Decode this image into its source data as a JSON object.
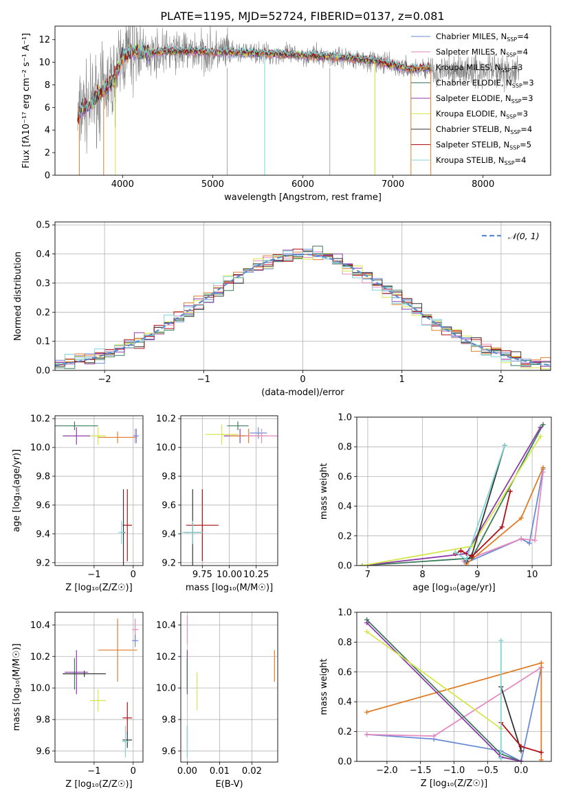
{
  "title": "PLATE=1195, MJD=52724, FIBERID=0137, z=0.081",
  "colors": {
    "chabrier_miles": "#6a8bd6",
    "salpeter_miles": "#e589bf",
    "kroupa_miles": "#e07b26",
    "chabrier_elodie": "#3a7a5a",
    "salpeter_elodie": "#8e3aa8",
    "kroupa_elodie": "#d4e64a",
    "chabrier_stelib": "#333333",
    "salpeter_stelib": "#b00f14",
    "kroupa_stelib": "#7fd4d4",
    "data": "#808080",
    "normal": "#5a8ad0"
  },
  "chart_data": [
    {
      "id": "spectrum",
      "type": "line",
      "xlabel": "wavelength [Angstrom, rest frame]",
      "ylabel": "Flux [fλ10⁻¹⁷ erg cm⁻² s⁻¹ A⁻¹]",
      "xlim": [
        3250,
        8750
      ],
      "ylim": [
        0,
        13.2
      ],
      "xticks": [
        4000,
        5000,
        6000,
        7000,
        8000
      ],
      "yticks": [
        0,
        2,
        4,
        6,
        8,
        10,
        12
      ],
      "grid": false,
      "legend_position": "top-right",
      "continuum": {
        "x": [
          3500,
          3550,
          3650,
          3700,
          3800,
          3900,
          4000,
          4100,
          4300,
          4500,
          5000,
          5500,
          6000,
          6500,
          6800,
          7000,
          7200,
          7420
        ],
        "y": [
          5.0,
          6.0,
          6.3,
          7.0,
          7.6,
          8.4,
          10.5,
          11.0,
          10.8,
          11.0,
          10.9,
          10.8,
          10.6,
          10.4,
          10.1,
          9.7,
          9.4,
          9.5
        ]
      },
      "series": [
        {
          "name": "Chabrier MILES, N_SSP=4",
          "color_key": "chabrier_miles"
        },
        {
          "name": "Salpeter MILES, N_SSP=4",
          "color_key": "salpeter_miles"
        },
        {
          "name": "Kroupa MILES, N_SSP=3",
          "color_key": "kroupa_miles"
        },
        {
          "name": "Chabrier ELODIE, N_SSP=3",
          "color_key": "chabrier_elodie"
        },
        {
          "name": "Salpeter ELODIE, N_SSP=3",
          "color_key": "salpeter_elodie"
        },
        {
          "name": "Kroupa ELODIE, N_SSP=3",
          "color_key": "kroupa_elodie"
        },
        {
          "name": "Chabrier STELIB, N_SSP=4",
          "color_key": "chabrier_stelib"
        },
        {
          "name": "Salpeter STELIB, N_SSP=5",
          "color_key": "salpeter_stelib"
        },
        {
          "name": "Kroupa STELIB, N_SSP=4",
          "color_key": "kroupa_stelib"
        }
      ]
    },
    {
      "id": "residuals",
      "type": "histogram",
      "xlabel": "(data-model)/error",
      "ylabel": "Normed distribution",
      "xlim": [
        -2.5,
        2.5
      ],
      "ylim": [
        0,
        0.51
      ],
      "xticks": [
        -2,
        -1,
        0,
        1,
        2
      ],
      "yticks": [
        0.0,
        0.1,
        0.2,
        0.3,
        0.4,
        0.5
      ],
      "grid": true,
      "legend_position": "top-right",
      "reference_curve": {
        "name": "𝒩(0, 1)",
        "mean": 0,
        "sigma": 1
      }
    },
    {
      "id": "age_vs_Z",
      "type": "errorbar",
      "xlabel": "Z [log₁₀(Z/Z☉)]",
      "ylabel": "age  [log₁₀(age/yr)]",
      "xlim": [
        -2.0,
        0.25
      ],
      "ylim": [
        9.18,
        10.22
      ],
      "xticks": [
        -1,
        0
      ],
      "yticks": [
        9.2,
        9.4,
        9.6,
        9.8,
        10.0,
        10.2
      ],
      "grid": true,
      "points": [
        {
          "color_key": "chabrier_elodie",
          "x": -1.5,
          "xerr": 0.6,
          "y": 10.15,
          "yerr": 0.03
        },
        {
          "color_key": "salpeter_elodie",
          "x": -1.45,
          "xerr": 0.35,
          "y": 10.08,
          "yerr": 0.06
        },
        {
          "color_key": "kroupa_elodie",
          "x": -0.9,
          "xerr": 0.2,
          "y": 10.08,
          "yerr": 0.06
        },
        {
          "color_key": "kroupa_miles",
          "x": -0.4,
          "xerr": 0.5,
          "y": 10.07,
          "yerr": 0.04
        },
        {
          "color_key": "salpeter_miles",
          "x": 0.05,
          "xerr": 0.06,
          "y": 10.08,
          "yerr": 0.05
        },
        {
          "color_key": "chabrier_miles",
          "x": 0.08,
          "xerr": 0.06,
          "y": 10.08,
          "yerr": 0.05
        },
        {
          "color_key": "salpeter_stelib",
          "x": -0.15,
          "xerr": 0.12,
          "y": 9.46,
          "yerr": 0.25
        },
        {
          "color_key": "chabrier_stelib",
          "x": -0.25,
          "xerr": 0.05,
          "y": 9.41,
          "yerr": 0.3
        },
        {
          "color_key": "kroupa_stelib",
          "x": -0.3,
          "xerr": 0.08,
          "y": 9.41,
          "yerr": 0.08
        }
      ]
    },
    {
      "id": "age_vs_mass",
      "type": "errorbar",
      "xlabel": "mass [log₁₀(M/M☉)]",
      "xlim": [
        9.55,
        10.45
      ],
      "ylim": [
        9.18,
        10.22
      ],
      "xticks": [
        9.75,
        10.0,
        10.25
      ],
      "xticklabels": [
        "9.75",
        "10.00",
        "10.25"
      ],
      "yticks": [
        9.2,
        9.4,
        9.6,
        9.8,
        10.0,
        10.2
      ],
      "grid": true,
      "points": [
        {
          "color_key": "kroupa_elodie",
          "x": 9.93,
          "xerr": 0.15,
          "y": 10.09,
          "yerr": 0.07
        },
        {
          "color_key": "chabrier_elodie",
          "x": 10.08,
          "xerr": 0.1,
          "y": 10.15,
          "yerr": 0.03
        },
        {
          "color_key": "salpeter_elodie",
          "x": 10.1,
          "xerr": 0.15,
          "y": 10.08,
          "yerr": 0.05
        },
        {
          "color_key": "kroupa_miles",
          "x": 10.18,
          "xerr": 0.18,
          "y": 10.08,
          "yerr": 0.05
        },
        {
          "color_key": "chabrier_miles",
          "x": 10.27,
          "xerr": 0.08,
          "y": 10.1,
          "yerr": 0.04
        },
        {
          "color_key": "salpeter_miles",
          "x": 10.3,
          "xerr": 0.15,
          "y": 10.08,
          "yerr": 0.05
        },
        {
          "color_key": "salpeter_stelib",
          "x": 9.75,
          "xerr": 0.15,
          "y": 9.46,
          "yerr": 0.25
        },
        {
          "color_key": "chabrier_stelib",
          "x": 9.66,
          "xerr": 0.08,
          "y": 9.41,
          "yerr": 0.3
        },
        {
          "color_key": "kroupa_stelib",
          "x": 9.66,
          "xerr": 0.1,
          "y": 9.41,
          "yerr": 0.08
        }
      ]
    },
    {
      "id": "weight_vs_age",
      "type": "line",
      "xlabel": "age  [log₁₀(age/yr)]",
      "ylabel": "mass weight",
      "xlim": [
        6.8,
        10.35
      ],
      "ylim": [
        0,
        1.0
      ],
      "xticks": [
        7,
        8,
        9,
        10
      ],
      "yticks": [
        0.0,
        0.2,
        0.4,
        0.6,
        0.8,
        1.0
      ],
      "grid": true,
      "series": [
        {
          "color_key": "chabrier_miles",
          "x": [
            8.8,
            9.8,
            9.95,
            10.2
          ],
          "y": [
            0.02,
            0.18,
            0.15,
            0.65
          ]
        },
        {
          "color_key": "salpeter_miles",
          "x": [
            8.75,
            9.8,
            10.05,
            10.2
          ],
          "y": [
            0.03,
            0.18,
            0.17,
            0.63
          ]
        },
        {
          "color_key": "kroupa_miles",
          "x": [
            8.8,
            9.8,
            10.2
          ],
          "y": [
            0.01,
            0.32,
            0.66
          ]
        },
        {
          "color_key": "chabrier_elodie",
          "x": [
            6.9,
            8.9,
            10.2
          ],
          "y": [
            0.0,
            0.05,
            0.95
          ]
        },
        {
          "color_key": "salpeter_elodie",
          "x": [
            6.9,
            8.8,
            10.15
          ],
          "y": [
            0.0,
            0.08,
            0.93
          ]
        },
        {
          "color_key": "kroupa_elodie",
          "x": [
            6.9,
            8.9,
            10.15
          ],
          "y": [
            0.0,
            0.13,
            0.87
          ]
        },
        {
          "color_key": "chabrier_stelib",
          "x": [
            8.8,
            8.9,
            9.5
          ],
          "y": [
            0.03,
            0.07,
            0.81
          ]
        },
        {
          "color_key": "salpeter_stelib",
          "x": [
            8.6,
            8.7,
            8.9,
            9.45,
            9.6
          ],
          "y": [
            0.08,
            0.1,
            0.06,
            0.26,
            0.5
          ]
        },
        {
          "color_key": "kroupa_stelib",
          "x": [
            8.6,
            8.8,
            9.5
          ],
          "y": [
            0.09,
            0.04,
            0.81
          ]
        }
      ]
    },
    {
      "id": "mass_vs_Z",
      "type": "errorbar",
      "xlabel": "Z [log₁₀(Z/Z☉)]",
      "ylabel": "mass [log₁₀(M/M☉)]",
      "xlim": [
        -2.0,
        0.25
      ],
      "ylim": [
        9.53,
        10.48
      ],
      "xticks": [
        -1,
        0
      ],
      "yticks": [
        9.6,
        9.8,
        10.0,
        10.2,
        10.4
      ],
      "grid": true,
      "points": [
        {
          "color_key": "chabrier_elodie",
          "x": -1.5,
          "xerr": 0.3,
          "y": 10.09,
          "yerr": 0.1
        },
        {
          "color_key": "chabrier_stelib",
          "x": -1.25,
          "xerr": 0.55,
          "y": 10.09,
          "yerr": 0.02
        },
        {
          "color_key": "salpeter_elodie",
          "x": -1.45,
          "xerr": 0.3,
          "y": 10.1,
          "yerr": 0.14
        },
        {
          "color_key": "kroupa_elodie",
          "x": -0.9,
          "xerr": 0.2,
          "y": 9.92,
          "yerr": 0.07
        },
        {
          "color_key": "kroupa_miles",
          "x": -0.4,
          "xerr": 0.5,
          "y": 10.24,
          "yerr": 0.2
        },
        {
          "color_key": "salpeter_miles",
          "x": 0.05,
          "xerr": 0.08,
          "y": 10.37,
          "yerr": 0.07
        },
        {
          "color_key": "chabrier_miles",
          "x": 0.05,
          "xerr": 0.08,
          "y": 10.3,
          "yerr": 0.04
        },
        {
          "color_key": "salpeter_stelib",
          "x": -0.15,
          "xerr": 0.12,
          "y": 9.81,
          "yerr": 0.1
        },
        {
          "color_key": "chabrier_stelib",
          "x": -0.15,
          "xerr": 0.12,
          "y": 9.67,
          "yerr": 0.05
        },
        {
          "color_key": "kroupa_stelib",
          "x": -0.2,
          "xerr": 0.08,
          "y": 9.66,
          "yerr": 0.1
        }
      ]
    },
    {
      "id": "mass_vs_ebv",
      "type": "errorbar",
      "xlabel": "E(B-V)",
      "xlim": [
        -0.002,
        0.028
      ],
      "ylim": [
        9.53,
        10.48
      ],
      "xticks": [
        0.0,
        0.01,
        0.02
      ],
      "xticklabels": [
        "0.00",
        "0.01",
        "0.02"
      ],
      "yticks": [
        9.6,
        9.8,
        10.0,
        10.2,
        10.4
      ],
      "grid": true,
      "points": [
        {
          "color_key": "salpeter_miles",
          "x": 0.0,
          "xerr": 0.0,
          "y": 10.37,
          "yerr": 0.09
        },
        {
          "color_key": "salpeter_elodie",
          "x": 0.0,
          "xerr": 0.0,
          "y": 10.1,
          "yerr": 0.14
        },
        {
          "color_key": "chabrier_elodie",
          "x": 0.0,
          "xerr": 0.0,
          "y": 10.09,
          "yerr": 0.1
        },
        {
          "color_key": "kroupa_elodie",
          "x": 0.003,
          "xerr": 0.0,
          "y": 9.98,
          "yerr": 0.12
        },
        {
          "color_key": "kroupa_miles",
          "x": 0.027,
          "xerr": 0.0,
          "y": 10.14,
          "yerr": 0.1
        },
        {
          "color_key": "chabrier_miles",
          "x": 0.0,
          "xerr": 0.0,
          "y": 9.66,
          "yerr": 0.1
        },
        {
          "color_key": "kroupa_stelib",
          "x": 0.0,
          "xerr": 0.0,
          "y": 9.66,
          "yerr": 0.1
        }
      ]
    },
    {
      "id": "weight_vs_Z",
      "type": "line",
      "xlabel": "Z [log₁₀(Z/Z☉)]",
      "ylabel": "mass weight",
      "xlim": [
        -2.45,
        0.45
      ],
      "ylim": [
        0,
        1.0
      ],
      "xticks": [
        -2.0,
        -1.5,
        -1.0,
        -0.5,
        0.0
      ],
      "xticklabels": [
        "−2.0",
        "−1.5",
        "−1.0",
        "−0.5",
        "0.0"
      ],
      "yticks": [
        0.0,
        0.2,
        0.4,
        0.6,
        0.8,
        1.0
      ],
      "grid": true,
      "series": [
        {
          "color_key": "chabrier_miles",
          "x": [
            -2.3,
            -1.3,
            -0.3,
            0.0,
            0.3
          ],
          "y": [
            0.18,
            0.15,
            0.07,
            0.0,
            0.63
          ]
        },
        {
          "color_key": "salpeter_miles",
          "x": [
            -2.3,
            -1.3,
            0.3
          ],
          "y": [
            0.18,
            0.17,
            0.63
          ]
        },
        {
          "color_key": "kroupa_miles",
          "x": [
            -2.3,
            0.3,
            0.3
          ],
          "y": [
            0.33,
            0.66,
            0.01
          ]
        },
        {
          "color_key": "chabrier_elodie",
          "x": [
            -2.3,
            -0.3,
            0.0
          ],
          "y": [
            0.95,
            0.05,
            0.0
          ]
        },
        {
          "color_key": "salpeter_elodie",
          "x": [
            -2.3,
            -0.3,
            0.0
          ],
          "y": [
            0.93,
            0.03,
            0.0
          ]
        },
        {
          "color_key": "kroupa_elodie",
          "x": [
            -2.3,
            -0.3
          ],
          "y": [
            0.87,
            0.22
          ]
        },
        {
          "color_key": "chabrier_stelib",
          "x": [
            -0.3,
            0.0
          ],
          "y": [
            0.5,
            0.07
          ]
        },
        {
          "color_key": "salpeter_stelib",
          "x": [
            -0.3,
            0.0,
            0.3
          ],
          "y": [
            0.26,
            0.1,
            0.06
          ]
        },
        {
          "color_key": "kroupa_stelib",
          "x": [
            -0.3,
            -0.3
          ],
          "y": [
            0.81,
            0.02
          ]
        }
      ]
    }
  ]
}
